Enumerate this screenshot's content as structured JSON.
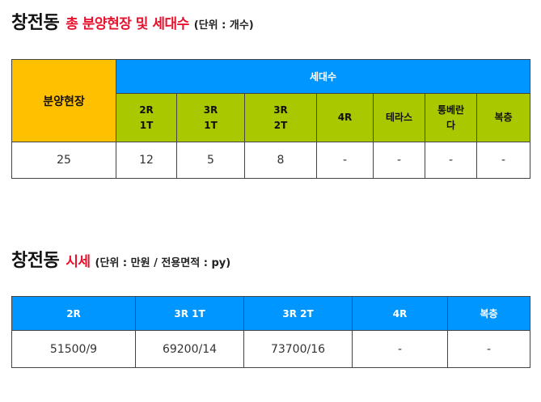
{
  "section1": {
    "title": "창전동",
    "subtitle": "총 분양현장 및 세대수",
    "unit": "(단위 : 개수)",
    "table": {
      "site_header": "분양현장",
      "count_header": "세대수",
      "types": [
        "2R\n1T",
        "3R\n1T",
        "3R\n2T",
        "4R",
        "테라스",
        "통베란\n다",
        "복층"
      ],
      "site_value": "25",
      "values": [
        "12",
        "5",
        "8",
        "-",
        "-",
        "-",
        "-"
      ]
    }
  },
  "section2": {
    "title": "창전동",
    "subtitle": "시세",
    "unit": "(단위 : 만원 / 전용면적 : py)",
    "table": {
      "headers": [
        "2R",
        "3R 1T",
        "3R 2T",
        "4R",
        "복층"
      ],
      "values": [
        "51500/9",
        "69200/14",
        "73700/16",
        "-",
        "-"
      ]
    }
  }
}
